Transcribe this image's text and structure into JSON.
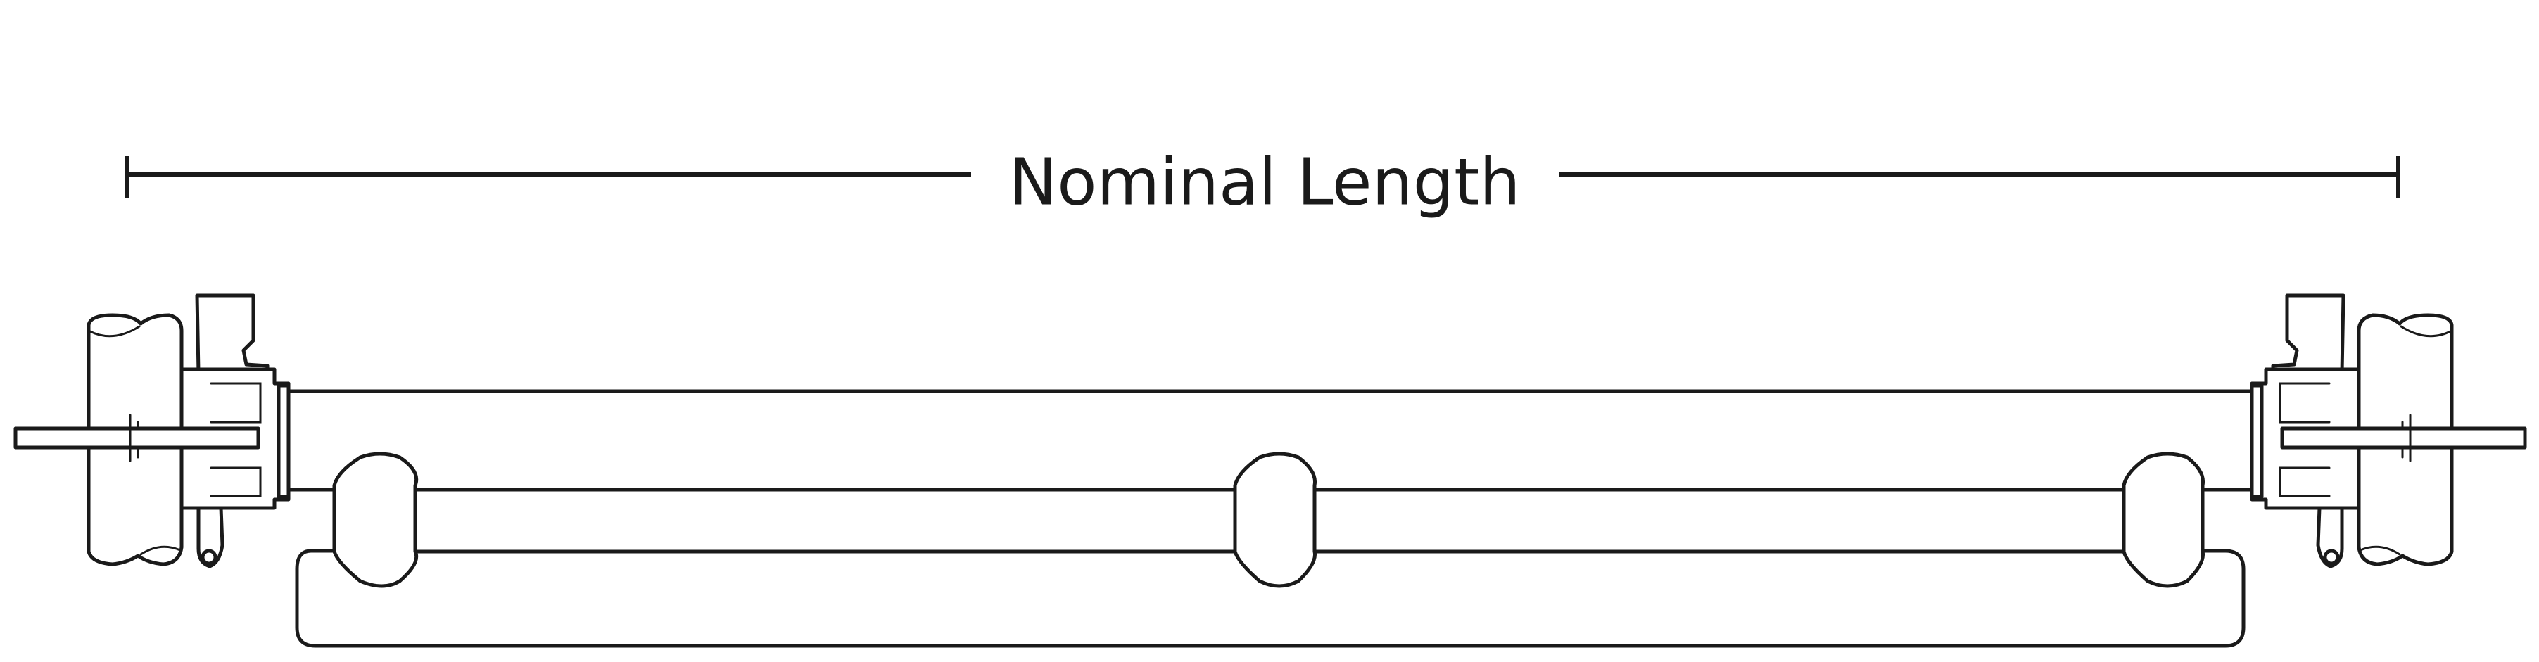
{
  "dimension": {
    "label": "Nominal Length"
  },
  "colors": {
    "line": "#1a1a1a",
    "background": "#ffffff"
  }
}
